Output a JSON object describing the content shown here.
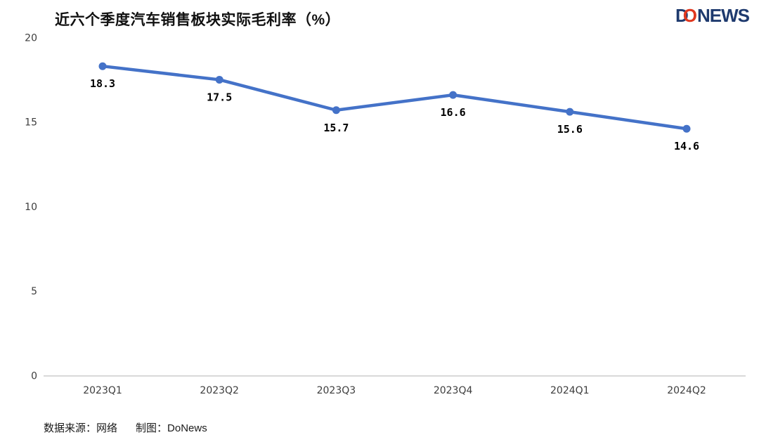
{
  "header": {
    "title": "近六个季度汽车销售板块实际毛利率（%）",
    "logo": {
      "d": "D",
      "o": "O",
      "news": "NEWS"
    }
  },
  "chart_data": {
    "type": "line",
    "title": "近六个季度汽车销售板块实际毛利率（%）",
    "categories": [
      "2023Q1",
      "2023Q2",
      "2023Q3",
      "2023Q4",
      "2024Q1",
      "2024Q2"
    ],
    "values": [
      18.3,
      17.5,
      15.7,
      16.6,
      15.6,
      14.6
    ],
    "data_labels": [
      "18.3",
      "17.5",
      "15.7",
      "16.6",
      "15.6",
      "14.6"
    ],
    "xlabel": "",
    "ylabel": "",
    "y_ticks": [
      0,
      5,
      10,
      15,
      20
    ],
    "ylim": [
      0,
      20
    ],
    "grid": false,
    "legend": "none",
    "colors": {
      "line": "#4472c8",
      "marker": "#4472c8",
      "axis": "#d9d9d9",
      "tick_text": "#3d3d3d",
      "label_text": "#000000"
    }
  },
  "footer": {
    "source": "数据来源：网络",
    "credit": "制图：DoNews"
  }
}
